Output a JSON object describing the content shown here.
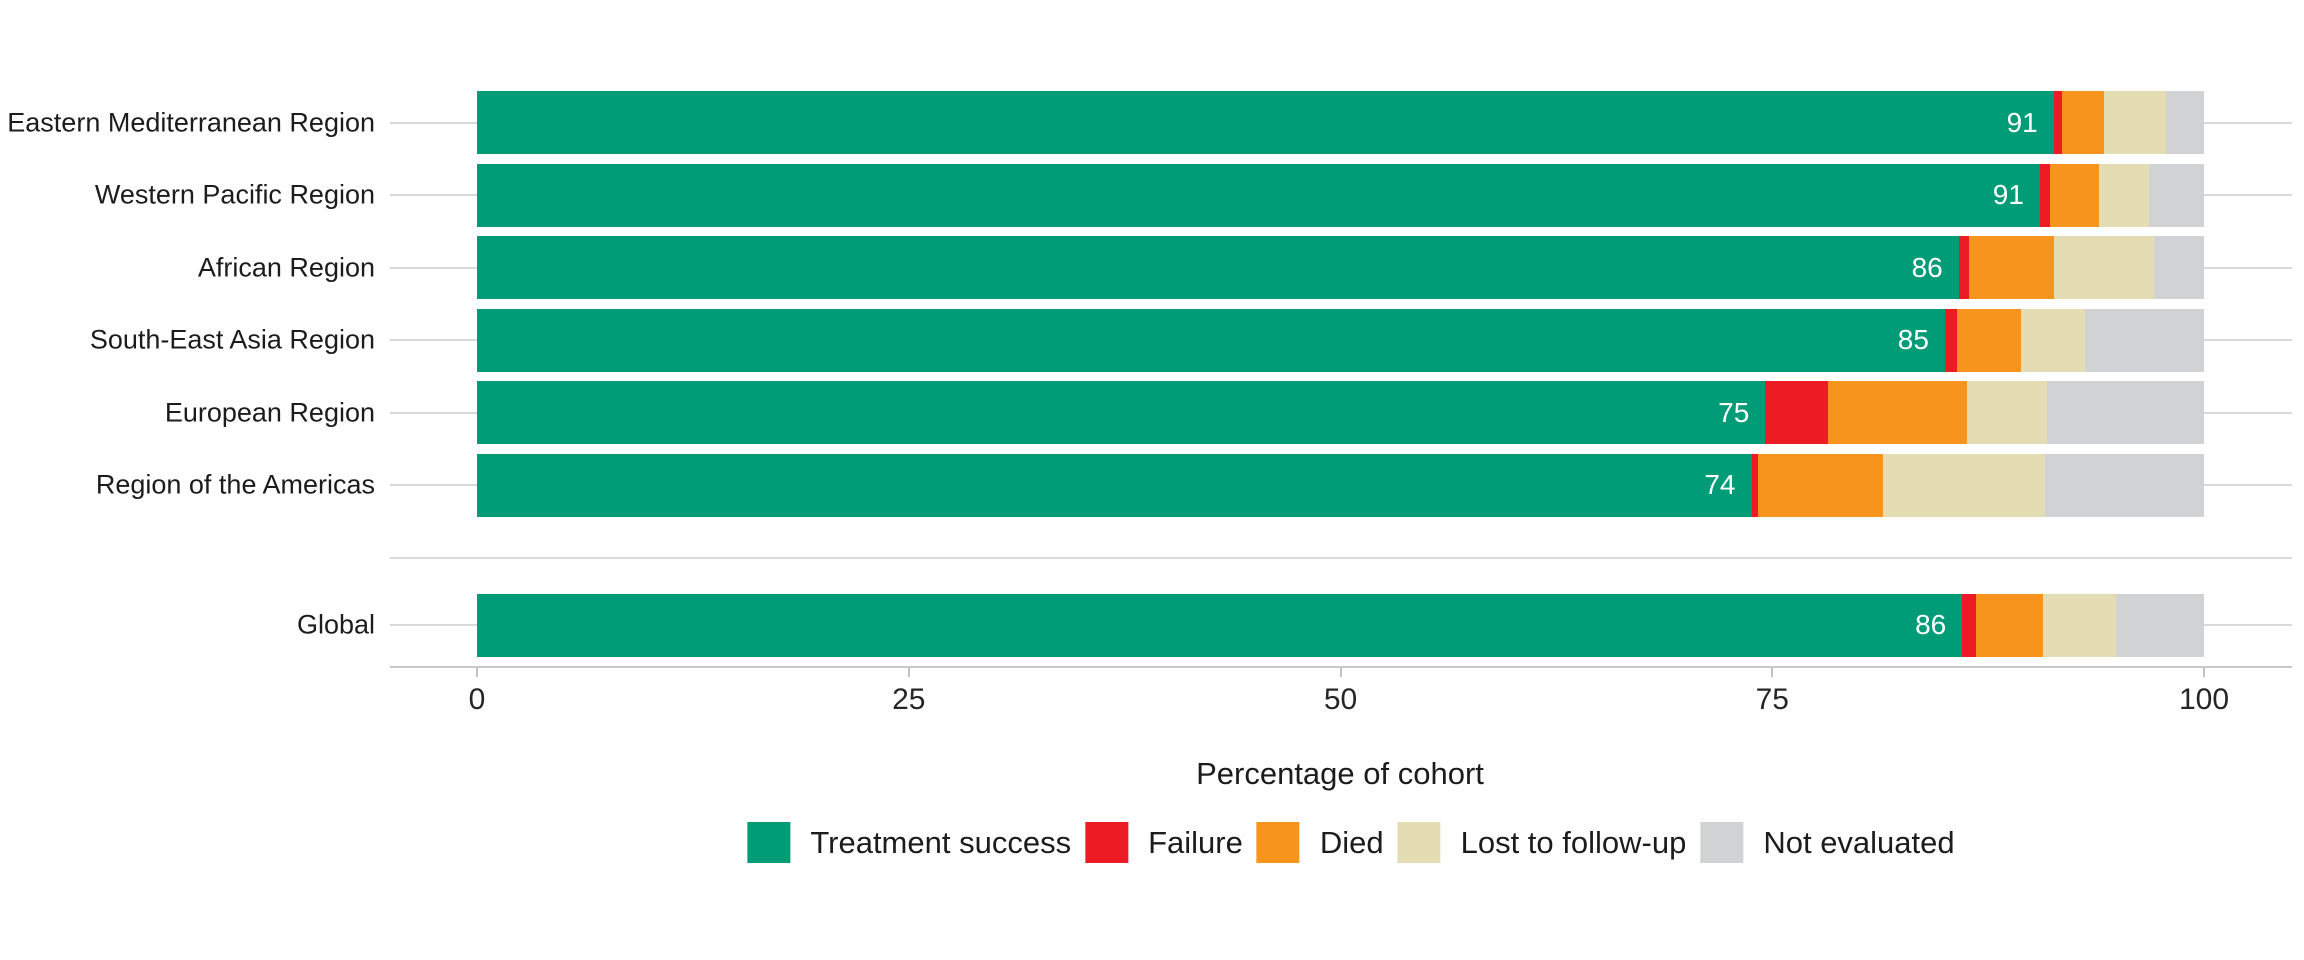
{
  "chart_data": {
    "type": "bar",
    "orientation": "horizontal",
    "stacked": true,
    "title": "",
    "categories": [
      "Eastern Mediterranean Region",
      "Western Pacific Region",
      "African Region",
      "South-East Asia Region",
      "European Region",
      "Region of the Americas",
      "Global"
    ],
    "global_row_separated": true,
    "bar_value_labels": [
      "91",
      "91",
      "86",
      "85",
      "75",
      "74",
      "86"
    ],
    "series": [
      {
        "name": "Treatment success",
        "color": "#009C77",
        "values": [
          91.3,
          90.5,
          85.8,
          85.0,
          74.6,
          73.8,
          86.0
        ]
      },
      {
        "name": "Failure",
        "color": "#ED1C24",
        "values": [
          0.5,
          0.6,
          0.6,
          0.7,
          3.6,
          0.4,
          0.8
        ]
      },
      {
        "name": "Died",
        "color": "#F7941E",
        "values": [
          2.4,
          2.8,
          4.9,
          3.7,
          8.1,
          7.2,
          3.9
        ]
      },
      {
        "name": "Lost to follow-up",
        "color": "#E4DDB3",
        "values": [
          3.6,
          2.9,
          5.8,
          3.7,
          4.6,
          9.4,
          4.2
        ]
      },
      {
        "name": "Not evaluated",
        "color": "#D0D2D3",
        "values": [
          2.2,
          3.2,
          2.9,
          6.9,
          9.1,
          9.2,
          5.1
        ]
      }
    ],
    "x_axis": {
      "label": "Percentage of cohort",
      "min": 0,
      "max": 100,
      "ticks": [
        0,
        25,
        50,
        75,
        100
      ]
    },
    "legend": [
      "Treatment success",
      "Failure",
      "Died",
      "Lost to follow-up",
      "Not evaluated"
    ],
    "legend_position": "bottom",
    "grid": "horizontal",
    "value_label_color": "#ffffff"
  },
  "style_colors": {
    "gridline": "#d9d9d9",
    "axis_line": "#c9c9c9",
    "tick": "#c2c2c2",
    "text": "#1c1c1c",
    "background": "#ffffff"
  }
}
